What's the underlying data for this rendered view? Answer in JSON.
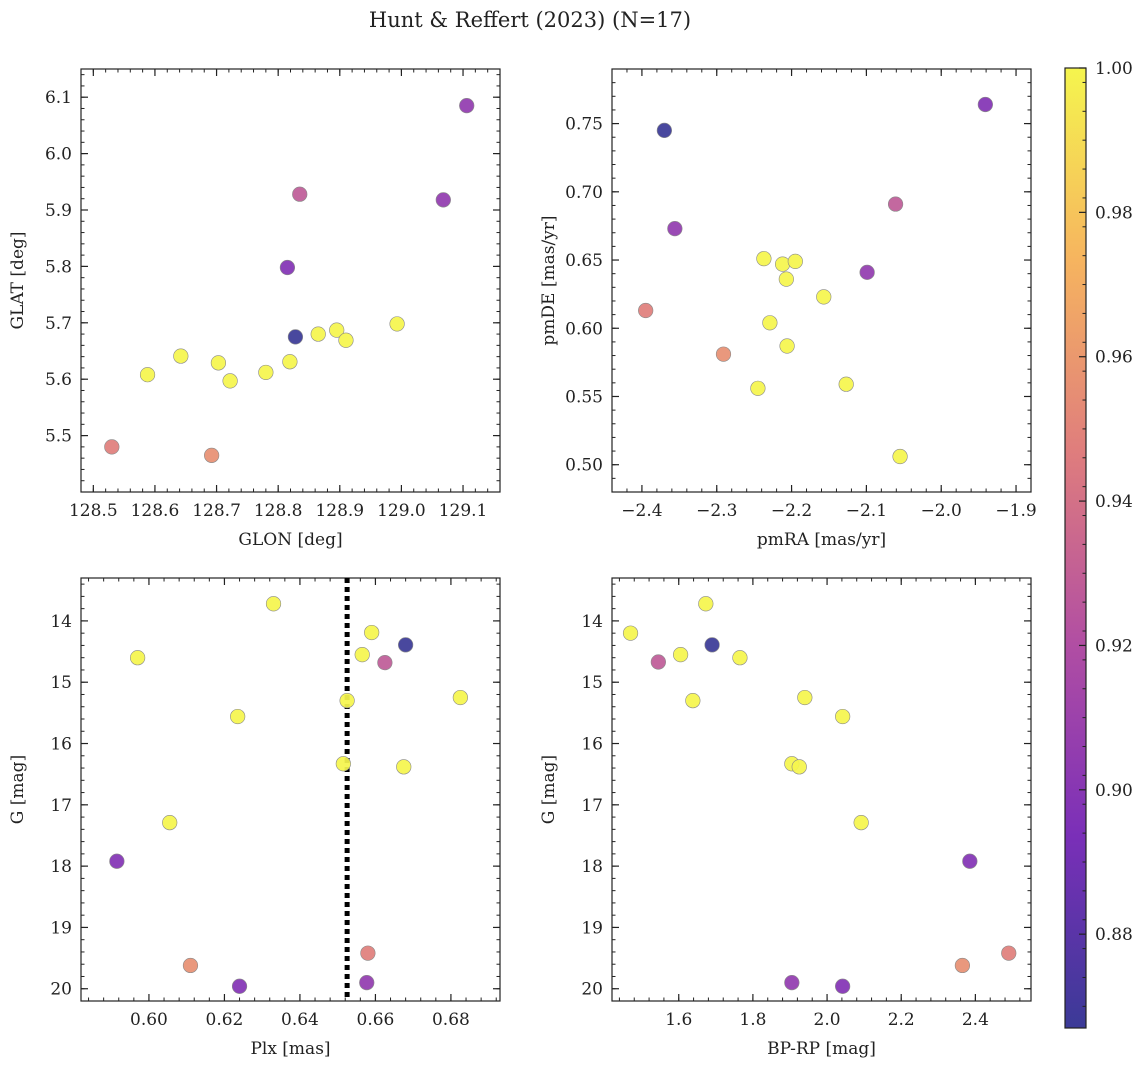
{
  "title": "Hunt & Reffert (2023) (N=17)",
  "colors": {
    "axis": "#222222",
    "marker_edge": "#8a8a8a",
    "vline": "#000000",
    "colormap": [
      "#3b3a97",
      "#7a2fb8",
      "#b14ea3",
      "#df7d7d",
      "#f6b45f",
      "#f5f54e"
    ]
  },
  "chart_data": [
    {
      "type": "scatter",
      "panel": "top-left",
      "xlabel": "GLON [deg]",
      "ylabel": "GLAT [deg]",
      "xlim": [
        128.48,
        129.16
      ],
      "ylim": [
        5.4,
        6.15
      ],
      "xticks": [
        128.5,
        128.6,
        128.7,
        128.8,
        128.9,
        129.0,
        129.1
      ],
      "xtick_labels": [
        "128.5",
        "128.6",
        "128.7",
        "128.8",
        "128.9",
        "129.0",
        "129.1"
      ],
      "yticks": [
        5.5,
        5.6,
        5.7,
        5.8,
        5.9,
        6.0,
        6.1
      ],
      "ytick_labels": [
        "5.5",
        "5.6",
        "5.7",
        "5.8",
        "5.9",
        "6.0",
        "6.1"
      ],
      "points": [
        {
          "x": 128.53,
          "y": 5.48,
          "c": 0.948
        },
        {
          "x": 128.588,
          "y": 5.608,
          "c": 1.0
        },
        {
          "x": 128.642,
          "y": 5.641,
          "c": 1.0
        },
        {
          "x": 128.692,
          "y": 5.465,
          "c": 0.956
        },
        {
          "x": 128.703,
          "y": 5.629,
          "c": 1.0
        },
        {
          "x": 128.722,
          "y": 5.597,
          "c": 1.0
        },
        {
          "x": 128.78,
          "y": 5.612,
          "c": 1.0
        },
        {
          "x": 128.815,
          "y": 5.798,
          "c": 0.898
        },
        {
          "x": 128.819,
          "y": 5.631,
          "c": 1.0
        },
        {
          "x": 128.828,
          "y": 5.675,
          "c": 0.867
        },
        {
          "x": 128.835,
          "y": 5.928,
          "c": 0.928
        },
        {
          "x": 128.865,
          "y": 5.68,
          "c": 1.0
        },
        {
          "x": 128.895,
          "y": 5.687,
          "c": 1.0
        },
        {
          "x": 128.91,
          "y": 5.669,
          "c": 1.0
        },
        {
          "x": 128.993,
          "y": 5.698,
          "c": 1.0
        },
        {
          "x": 129.068,
          "y": 5.918,
          "c": 0.905
        },
        {
          "x": 129.106,
          "y": 6.085,
          "c": 0.905
        }
      ]
    },
    {
      "type": "scatter",
      "panel": "top-right",
      "xlabel": "pmRA [mas/yr]",
      "ylabel": "pmDE [mas/yr]",
      "xlim": [
        -2.44,
        -1.88
      ],
      "ylim": [
        0.48,
        0.79
      ],
      "xticks": [
        -2.4,
        -2.3,
        -2.2,
        -2.1,
        -2.0,
        -1.9
      ],
      "xtick_labels": [
        "−2.4",
        "−2.3",
        "−2.2",
        "−2.1",
        "−2.0",
        "−1.9"
      ],
      "yticks": [
        0.5,
        0.55,
        0.6,
        0.65,
        0.7,
        0.75
      ],
      "ytick_labels": [
        "0.50",
        "0.55",
        "0.60",
        "0.65",
        "0.70",
        "0.75"
      ],
      "points": [
        {
          "x": -2.395,
          "y": 0.613,
          "c": 0.948
        },
        {
          "x": -2.37,
          "y": 0.745,
          "c": 0.867
        },
        {
          "x": -2.356,
          "y": 0.673,
          "c": 0.905
        },
        {
          "x": -2.291,
          "y": 0.581,
          "c": 0.956
        },
        {
          "x": -2.245,
          "y": 0.556,
          "c": 1.0
        },
        {
          "x": -2.237,
          "y": 0.651,
          "c": 1.0
        },
        {
          "x": -2.229,
          "y": 0.604,
          "c": 1.0
        },
        {
          "x": -2.212,
          "y": 0.647,
          "c": 1.0
        },
        {
          "x": -2.207,
          "y": 0.636,
          "c": 1.0
        },
        {
          "x": -2.206,
          "y": 0.587,
          "c": 1.0
        },
        {
          "x": -2.195,
          "y": 0.649,
          "c": 1.0
        },
        {
          "x": -2.157,
          "y": 0.623,
          "c": 1.0
        },
        {
          "x": -2.127,
          "y": 0.559,
          "c": 1.0
        },
        {
          "x": -2.099,
          "y": 0.641,
          "c": 0.905
        },
        {
          "x": -2.061,
          "y": 0.691,
          "c": 0.928
        },
        {
          "x": -2.055,
          "y": 0.506,
          "c": 1.0
        },
        {
          "x": -1.941,
          "y": 0.764,
          "c": 0.898
        }
      ]
    },
    {
      "type": "scatter",
      "panel": "bottom-left",
      "xlabel": "Plx [mas]",
      "ylabel": "G [mag]",
      "xlim": [
        0.582,
        0.693
      ],
      "ylim": [
        20.2,
        13.3
      ],
      "y_inverted": true,
      "vline": 0.6525,
      "xticks": [
        0.6,
        0.62,
        0.64,
        0.66,
        0.68
      ],
      "xtick_labels": [
        "0.60",
        "0.62",
        "0.64",
        "0.66",
        "0.68"
      ],
      "yticks": [
        14,
        15,
        16,
        17,
        18,
        19,
        20
      ],
      "ytick_labels": [
        "14",
        "15",
        "16",
        "17",
        "18",
        "19",
        "20"
      ],
      "points": [
        {
          "x": 0.5915,
          "y": 17.92,
          "c": 0.898
        },
        {
          "x": 0.597,
          "y": 14.6,
          "c": 1.0
        },
        {
          "x": 0.6055,
          "y": 17.29,
          "c": 1.0
        },
        {
          "x": 0.611,
          "y": 19.62,
          "c": 0.956
        },
        {
          "x": 0.6235,
          "y": 15.56,
          "c": 1.0
        },
        {
          "x": 0.624,
          "y": 19.96,
          "c": 0.898
        },
        {
          "x": 0.633,
          "y": 13.72,
          "c": 1.0
        },
        {
          "x": 0.6515,
          "y": 16.33,
          "c": 1.0
        },
        {
          "x": 0.6525,
          "y": 15.3,
          "c": 1.0
        },
        {
          "x": 0.6565,
          "y": 14.55,
          "c": 1.0
        },
        {
          "x": 0.658,
          "y": 19.42,
          "c": 0.948
        },
        {
          "x": 0.6577,
          "y": 19.9,
          "c": 0.905
        },
        {
          "x": 0.659,
          "y": 14.19,
          "c": 1.0
        },
        {
          "x": 0.6625,
          "y": 14.68,
          "c": 0.928
        },
        {
          "x": 0.6675,
          "y": 16.38,
          "c": 1.0
        },
        {
          "x": 0.668,
          "y": 14.39,
          "c": 0.867
        },
        {
          "x": 0.6825,
          "y": 15.25,
          "c": 1.0
        }
      ]
    },
    {
      "type": "scatter",
      "panel": "bottom-right",
      "xlabel": "BP-RP [mag]",
      "ylabel": "G [mag]",
      "xlim": [
        1.42,
        2.55
      ],
      "ylim": [
        20.2,
        13.3
      ],
      "y_inverted": true,
      "xticks": [
        1.6,
        1.8,
        2.0,
        2.2,
        2.4
      ],
      "xtick_labels": [
        "1.6",
        "1.8",
        "2.0",
        "2.2",
        "2.4"
      ],
      "yticks": [
        14,
        15,
        16,
        17,
        18,
        19,
        20
      ],
      "ytick_labels": [
        "14",
        "15",
        "16",
        "17",
        "18",
        "19",
        "20"
      ],
      "points": [
        {
          "x": 1.47,
          "y": 14.2,
          "c": 1.0
        },
        {
          "x": 1.545,
          "y": 14.67,
          "c": 0.928
        },
        {
          "x": 1.605,
          "y": 14.55,
          "c": 1.0
        },
        {
          "x": 1.638,
          "y": 15.3,
          "c": 1.0
        },
        {
          "x": 1.673,
          "y": 13.72,
          "c": 1.0
        },
        {
          "x": 1.69,
          "y": 14.39,
          "c": 0.867
        },
        {
          "x": 1.765,
          "y": 14.6,
          "c": 1.0
        },
        {
          "x": 1.905,
          "y": 16.33,
          "c": 1.0
        },
        {
          "x": 1.905,
          "y": 19.9,
          "c": 0.905
        },
        {
          "x": 1.925,
          "y": 16.38,
          "c": 1.0
        },
        {
          "x": 1.94,
          "y": 15.25,
          "c": 1.0
        },
        {
          "x": 2.042,
          "y": 15.56,
          "c": 1.0
        },
        {
          "x": 2.042,
          "y": 19.96,
          "c": 0.898
        },
        {
          "x": 2.092,
          "y": 17.29,
          "c": 1.0
        },
        {
          "x": 2.365,
          "y": 19.62,
          "c": 0.956
        },
        {
          "x": 2.385,
          "y": 17.92,
          "c": 0.898
        },
        {
          "x": 2.49,
          "y": 19.42,
          "c": 0.948
        }
      ]
    }
  ],
  "colorbar": {
    "min": 0.867,
    "max": 1.0,
    "ticks": [
      0.88,
      0.9,
      0.92,
      0.94,
      0.96,
      0.98,
      1.0
    ],
    "tick_labels": [
      "0.88",
      "0.90",
      "0.92",
      "0.94",
      "0.96",
      "0.98",
      "1.00"
    ]
  }
}
